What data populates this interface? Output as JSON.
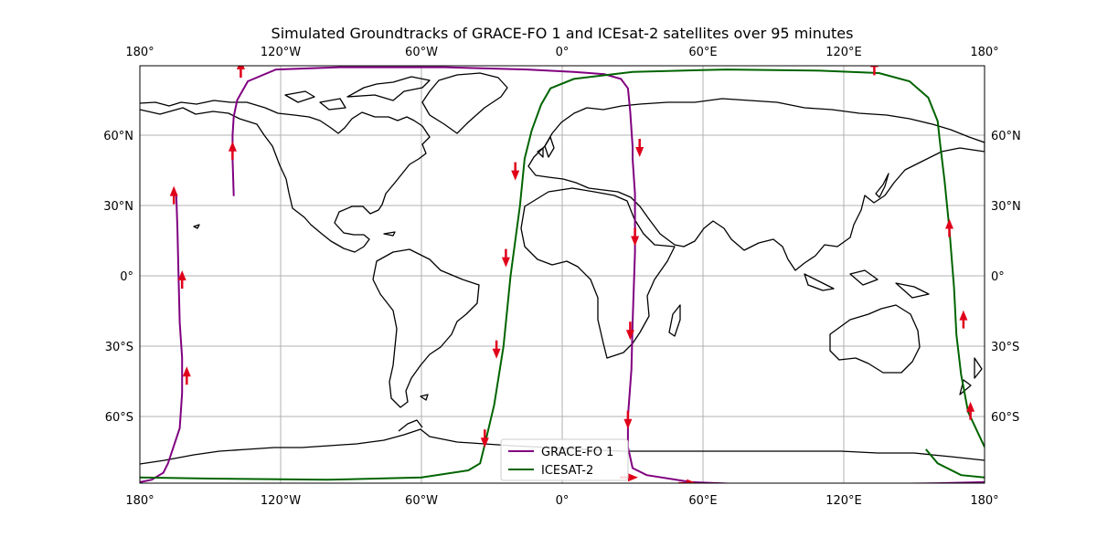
{
  "title": "Simulated Groundtracks of GRACE-FO 1 and ICEsat-2 satellites over 95 minutes",
  "colors": {
    "grace": "#800080",
    "icesat": "#006400",
    "arrow": "#e0001a",
    "grid": "#b0b0b0",
    "coast": "#000000"
  },
  "legend": {
    "items": [
      {
        "label": "GRACE-FO 1",
        "color": "#800080"
      },
      {
        "label": "ICESAT-2",
        "color": "#006400"
      }
    ],
    "position": "lower-center"
  },
  "map": {
    "projection": "PlateCarree",
    "lon_range": [
      -180,
      180
    ],
    "lat_range": [
      -88,
      90
    ],
    "lon_ticks": [
      {
        "value": -180,
        "label": "180°"
      },
      {
        "value": -120,
        "label": "120°W"
      },
      {
        "value": -60,
        "label": "60°W"
      },
      {
        "value": 0,
        "label": "0°"
      },
      {
        "value": 60,
        "label": "60°E"
      },
      {
        "value": 120,
        "label": "120°E"
      },
      {
        "value": 180,
        "label": "180°"
      }
    ],
    "lat_ticks": [
      {
        "value": 60,
        "label": "60°N"
      },
      {
        "value": 30,
        "label": "30°N"
      },
      {
        "value": 0,
        "label": "0°"
      },
      {
        "value": -30,
        "label": "30°S"
      },
      {
        "value": -60,
        "label": "60°S"
      }
    ],
    "grid": true
  },
  "chart_data": {
    "type": "line",
    "title": "Simulated Groundtracks of GRACE-FO 1 and ICEsat-2 satellites over 95 minutes",
    "xlim": [
      -180,
      180
    ],
    "ylim": [
      -88,
      90
    ],
    "series": [
      {
        "name": "GRACE-FO 1",
        "color": "#800080",
        "segments": [
          [
            [
              -140,
              34
            ],
            [
              -140.5,
              50
            ],
            [
              -140.5,
              60
            ],
            [
              -140,
              68
            ],
            [
              -138.5,
              75
            ],
            [
              -134,
              83
            ],
            [
              -122,
              88
            ],
            [
              -95,
              89
            ],
            [
              -50,
              89
            ],
            [
              -15,
              88
            ],
            [
              5,
              87
            ],
            [
              18,
              86
            ],
            [
              25,
              84
            ],
            [
              28,
              80
            ],
            [
              29,
              70
            ],
            [
              30,
              55
            ],
            [
              30,
              50
            ],
            [
              31,
              35
            ],
            [
              31,
              10
            ],
            [
              30,
              -20
            ],
            [
              29.5,
              -40
            ],
            [
              28,
              -60
            ],
            [
              28,
              -73
            ],
            [
              30,
              -82
            ],
            [
              36,
              -85
            ],
            [
              55,
              -88
            ],
            [
              80,
              -89
            ],
            [
              120,
              -89
            ],
            [
              160,
              -88.5
            ],
            [
              180,
              -88
            ]
          ],
          [
            [
              -180,
              -88
            ],
            [
              -175,
              -87
            ],
            [
              -170,
              -84
            ],
            [
              -168,
              -80
            ],
            [
              -163,
              -65
            ],
            [
              -162,
              -50
            ],
            [
              -162,
              -35
            ],
            [
              -163,
              -20
            ],
            [
              -163.5,
              0
            ],
            [
              -164,
              20
            ],
            [
              -164.5,
              35
            ]
          ]
        ],
        "arrows": [
          [
            -140.5,
            55,
            "up"
          ],
          [
            -137,
            90,
            "up"
          ],
          [
            33,
            53,
            "down"
          ],
          [
            31,
            15,
            "down"
          ],
          [
            29,
            -25,
            "down"
          ],
          [
            28,
            -63,
            "down"
          ],
          [
            55,
            -88.5,
            "right"
          ],
          [
            -165.5,
            36,
            "up"
          ],
          [
            -162,
            0,
            "up"
          ],
          [
            -160,
            -41,
            "up"
          ]
        ]
      },
      {
        "name": "ICESAT-2",
        "color": "#006400",
        "segments": [
          [
            [
              -180,
              -86
            ],
            [
              -150,
              -86.5
            ],
            [
              -100,
              -87
            ],
            [
              -60,
              -86
            ],
            [
              -40,
              -83
            ],
            [
              -35,
              -80
            ],
            [
              -33,
              -72
            ],
            [
              -29,
              -55
            ],
            [
              -25,
              -30
            ],
            [
              -22,
              0
            ],
            [
              -18,
              30
            ],
            [
              -16,
              50
            ],
            [
              -13,
              62
            ],
            [
              -9,
              73
            ],
            [
              -5,
              80
            ],
            [
              5,
              84
            ],
            [
              30,
              87
            ],
            [
              70,
              88
            ],
            [
              110,
              87.5
            ],
            [
              135,
              86.5
            ],
            [
              148,
              83
            ],
            [
              156,
              76
            ],
            [
              160,
              66
            ],
            [
              161,
              57
            ],
            [
              163,
              40
            ],
            [
              165,
              20
            ],
            [
              167,
              -5
            ],
            [
              168,
              -25
            ],
            [
              170,
              -42
            ],
            [
              173,
              -58
            ],
            [
              180,
              -73
            ]
          ],
          [
            [
              155,
              -74
            ],
            [
              160,
              -80
            ],
            [
              170,
              -85
            ],
            [
              180,
              -86
            ]
          ]
        ],
        "arrows": [
          [
            -33,
            -71,
            "down"
          ],
          [
            -28,
            -33,
            "down"
          ],
          [
            -24,
            6,
            "down"
          ],
          [
            -20,
            43,
            "down"
          ],
          [
            133,
            91,
            "up"
          ],
          [
            165,
            22,
            "up"
          ],
          [
            171,
            -17,
            "up"
          ],
          [
            174,
            -56,
            "up"
          ],
          [
            30,
            -86,
            "right"
          ]
        ]
      }
    ]
  }
}
